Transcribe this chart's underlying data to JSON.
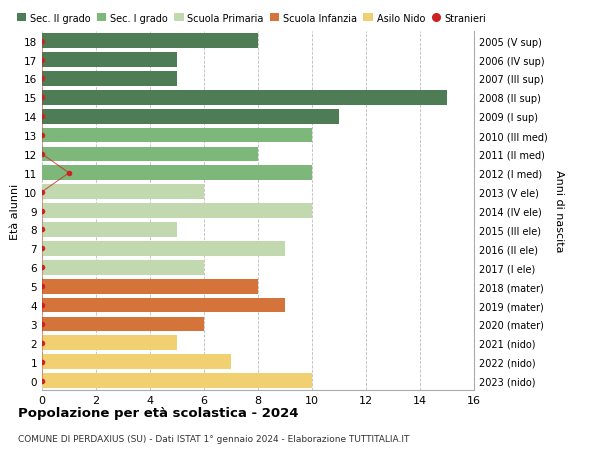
{
  "title1": "Popolazione per età scolastica - 2024",
  "title2": "COMUNE DI PERDAXIUS (SU) - Dati ISTAT 1° gennaio 2024 - Elaborazione TUTTITALIA.IT",
  "ylabel_left": "Età alunni",
  "ylabel_right": "Anni di nascita",
  "ages": [
    18,
    17,
    16,
    15,
    14,
    13,
    12,
    11,
    10,
    9,
    8,
    7,
    6,
    5,
    4,
    3,
    2,
    1,
    0
  ],
  "right_labels": [
    "2005 (V sup)",
    "2006 (IV sup)",
    "2007 (III sup)",
    "2008 (II sup)",
    "2009 (I sup)",
    "2010 (III med)",
    "2011 (II med)",
    "2012 (I med)",
    "2013 (V ele)",
    "2014 (IV ele)",
    "2015 (III ele)",
    "2016 (II ele)",
    "2017 (I ele)",
    "2018 (mater)",
    "2019 (mater)",
    "2020 (mater)",
    "2021 (nido)",
    "2022 (nido)",
    "2023 (nido)"
  ],
  "bar_values": [
    8,
    5,
    5,
    15,
    11,
    10,
    8,
    10,
    6,
    10,
    5,
    9,
    6,
    8,
    9,
    6,
    5,
    7,
    10
  ],
  "bar_colors": [
    "#4e7d55",
    "#4e7d55",
    "#4e7d55",
    "#4e7d55",
    "#4e7d55",
    "#7db87a",
    "#7db87a",
    "#7db87a",
    "#c2d9b0",
    "#c2d9b0",
    "#c2d9b0",
    "#c2d9b0",
    "#c2d9b0",
    "#d4733a",
    "#d4733a",
    "#d4733a",
    "#f0d070",
    "#f0d070",
    "#f0d070"
  ],
  "stranieri_x": [
    0,
    0,
    0,
    0,
    0,
    0,
    0,
    1,
    0,
    0,
    0,
    0,
    0,
    0,
    0,
    0,
    0,
    0,
    0
  ],
  "legend_labels": [
    "Sec. II grado",
    "Sec. I grado",
    "Scuola Primaria",
    "Scuola Infanzia",
    "Asilo Nido",
    "Stranieri"
  ],
  "legend_colors": [
    "#4e7d55",
    "#7db87a",
    "#c2d9b0",
    "#d4733a",
    "#f0d070",
    "#cc2222"
  ],
  "dot_color": "#cc2222",
  "xlim": [
    0,
    16
  ],
  "xticks": [
    0,
    2,
    4,
    6,
    8,
    10,
    12,
    14,
    16
  ],
  "background_color": "#ffffff",
  "grid_color": "#bbbbbb",
  "bar_height": 0.78,
  "fig_width": 6.0,
  "fig_height": 4.6,
  "dpi": 100
}
